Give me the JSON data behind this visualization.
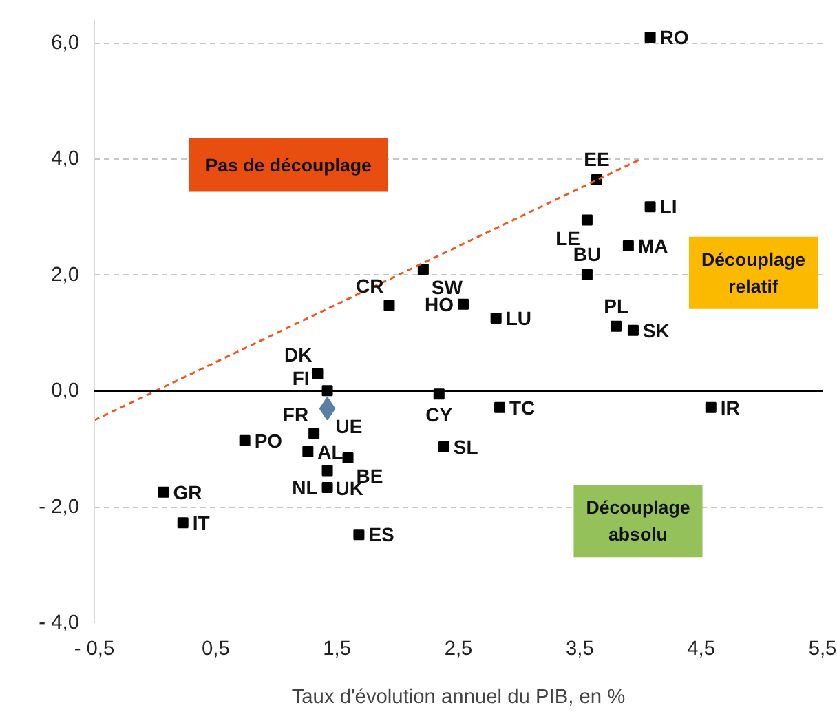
{
  "chart_data": {
    "type": "scatter",
    "xlabel": "Taux d'évolution annuel du PIB, en %",
    "xlim": [
      -0.5,
      5.5
    ],
    "ylim": [
      -4.0,
      6.4
    ],
    "xticks": [
      {
        "value": -0.5,
        "label": "- 0,5"
      },
      {
        "value": 0.5,
        "label": "0,5"
      },
      {
        "value": 1.5,
        "label": "1,5"
      },
      {
        "value": 2.5,
        "label": "2,5"
      },
      {
        "value": 3.5,
        "label": "3,5"
      },
      {
        "value": 4.5,
        "label": "4,5"
      },
      {
        "value": 5.5,
        "label": "5,5"
      }
    ],
    "yticks": [
      {
        "value": -4,
        "label": "- 4,0"
      },
      {
        "value": -2,
        "label": "- 2,0"
      },
      {
        "value": 0,
        "label": "0,0"
      },
      {
        "value": 2,
        "label": "2,0"
      },
      {
        "value": 4,
        "label": "4,0"
      },
      {
        "value": 6,
        "label": "6,0"
      }
    ],
    "grid": "y",
    "ref_lines": [
      {
        "axis": "y",
        "value": 0,
        "color": "#000000",
        "line_style": "solid"
      }
    ],
    "annotations": [
      "Pas de découplage",
      "Découplage relatif",
      "Découplage absolu"
    ],
    "series": [
      {
        "marker": "square",
        "color": "#000000",
        "x": [
          4.08,
          3.64,
          4.08,
          3.56,
          3.9,
          3.56,
          3.8,
          3.94,
          4.58,
          2.21,
          1.93,
          2.54,
          2.81,
          1.34,
          1.42,
          2.34,
          2.84,
          1.31,
          0.74,
          1.26,
          1.59,
          2.38,
          1.42,
          1.42,
          0.07,
          0.23,
          1.68
        ],
        "values": [
          6.1,
          3.65,
          3.18,
          2.95,
          2.51,
          2.01,
          1.12,
          1.05,
          -0.28,
          2.1,
          1.48,
          1.5,
          1.26,
          0.3,
          0.01,
          -0.05,
          -0.28,
          -0.73,
          -0.85,
          -1.04,
          -1.15,
          -0.96,
          -1.37,
          -1.66,
          -1.74,
          -2.27,
          -2.47
        ],
        "value_labels": [
          "RO",
          "EE",
          "LI",
          "LE",
          "MA",
          "BU",
          "PL",
          "SK",
          "IR",
          "SW",
          "CR",
          "HO",
          "LU",
          "DK",
          "FI",
          "CY",
          "TC",
          "FR",
          "PO",
          "AL",
          "BE",
          "SL",
          "UK",
          "NL",
          "GR",
          "IT",
          "ES"
        ]
      },
      {
        "type": "scatter",
        "marker": "diamond",
        "color": "#5b80a5",
        "x": [
          1.42
        ],
        "values": [
          -0.3
        ],
        "value_labels": [
          "UE"
        ]
      },
      {
        "type": "line",
        "line_style": "dashed",
        "color": "#ee5a1e",
        "x": [
          -0.5,
          4.0
        ],
        "values": [
          -0.5,
          4.0
        ]
      }
    ]
  }
}
